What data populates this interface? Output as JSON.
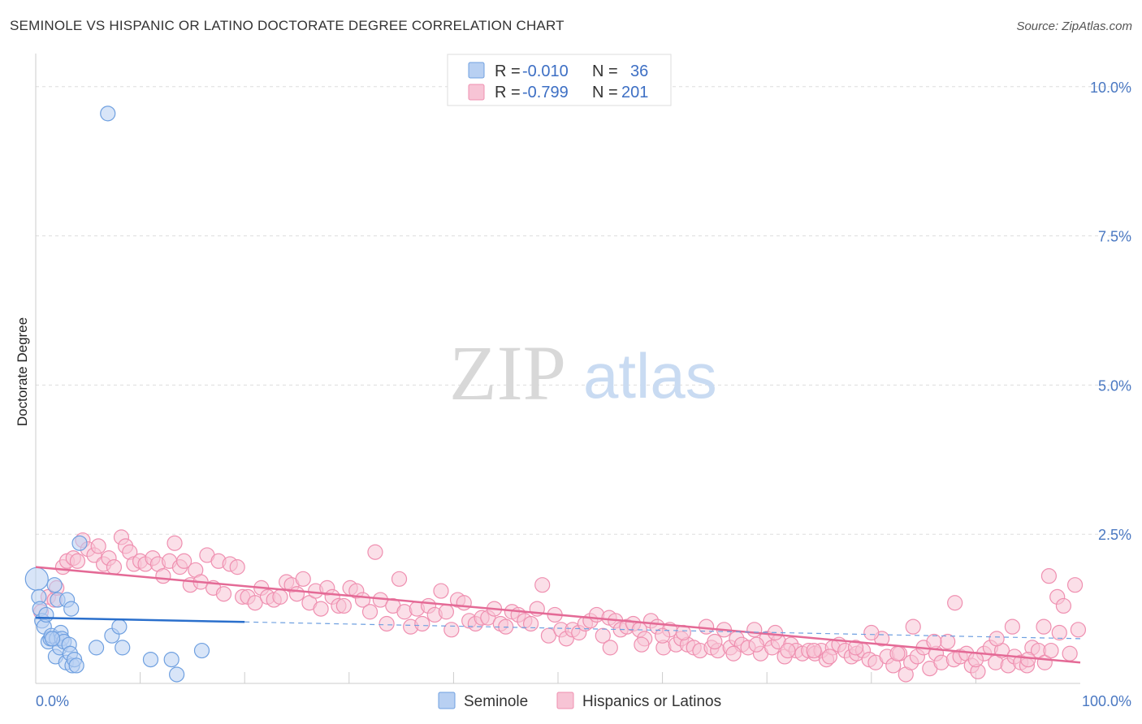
{
  "header": {
    "title": "SEMINOLE VS HISPANIC OR LATINO DOCTORATE DEGREE CORRELATION CHART",
    "source": "Source: ZipAtlas.com"
  },
  "watermark": {
    "zip": "ZIP",
    "atlas": "atlas"
  },
  "legend": {
    "rows": [
      {
        "r_label": "R =",
        "r_value": "-0.010",
        "n_label": "N =",
        "n_value": "36"
      },
      {
        "r_label": "R =",
        "r_value": "-0.799",
        "n_label": "N =",
        "n_value": "201"
      }
    ]
  },
  "bottom_legend": {
    "items": [
      "Seminole",
      "Hispanics or Latinos"
    ]
  },
  "colors": {
    "seminole": "#6fa0e0",
    "seminole_fill": "#b8d0f2",
    "seminole_line": "#2a6fcc",
    "hispanic": "#ef8fb0",
    "hispanic_fill": "#f7c4d5",
    "hispanic_line": "#e46a96",
    "grid": "#dddddd",
    "axis_text": "#4a78c2"
  },
  "chart_data": {
    "type": "scatter",
    "ylabel": "Doctorate Degree",
    "xlim": [
      0,
      100
    ],
    "ylim": [
      0,
      10.5
    ],
    "y_ticks": [
      {
        "value": 2.5,
        "label": "2.5%"
      },
      {
        "value": 5.0,
        "label": "5.0%"
      },
      {
        "value": 7.5,
        "label": "7.5%"
      },
      {
        "value": 10.0,
        "label": "10.0%"
      }
    ],
    "x_ticks": [
      {
        "value": 0,
        "label": "0.0%"
      },
      {
        "value": 100,
        "label": "100.0%"
      }
    ],
    "x_minor_ticks": [
      10,
      20,
      30,
      40,
      50,
      60,
      70,
      80,
      90
    ],
    "grid": "horizontal-dashed",
    "series": [
      {
        "name": "Seminole",
        "trend": {
          "x0": 0,
          "y0": 1.1,
          "x1": 100,
          "y1": 0.75,
          "solid_until": 20
        },
        "points": [
          [
            0.1,
            1.75
          ],
          [
            0.3,
            1.45
          ],
          [
            0.4,
            1.25
          ],
          [
            0.6,
            1.05
          ],
          [
            0.8,
            0.95
          ],
          [
            1.0,
            1.15
          ],
          [
            1.2,
            0.7
          ],
          [
            1.4,
            0.75
          ],
          [
            1.5,
            0.8
          ],
          [
            1.8,
            1.65
          ],
          [
            1.9,
            0.45
          ],
          [
            2.0,
            0.75
          ],
          [
            2.1,
            1.4
          ],
          [
            2.3,
            0.6
          ],
          [
            2.4,
            0.85
          ],
          [
            2.5,
            0.75
          ],
          [
            2.7,
            0.7
          ],
          [
            2.9,
            0.35
          ],
          [
            3.0,
            1.4
          ],
          [
            3.2,
            0.65
          ],
          [
            3.3,
            0.5
          ],
          [
            3.4,
            1.25
          ],
          [
            3.5,
            0.3
          ],
          [
            3.7,
            0.4
          ],
          [
            3.9,
            0.3
          ],
          [
            4.2,
            2.35
          ],
          [
            5.8,
            0.6
          ],
          [
            6.9,
            9.55
          ],
          [
            7.3,
            0.8
          ],
          [
            8.0,
            0.95
          ],
          [
            8.3,
            0.6
          ],
          [
            11.0,
            0.4
          ],
          [
            13.0,
            0.4
          ],
          [
            13.5,
            0.15
          ],
          [
            15.9,
            0.55
          ],
          [
            1.6,
            0.75
          ]
        ]
      },
      {
        "name": "Hispanics or Latinos",
        "trend": {
          "x0": 0,
          "y0": 1.95,
          "x1": 100,
          "y1": 0.35
        },
        "points": [
          [
            0.5,
            1.2
          ],
          [
            1.2,
            1.45
          ],
          [
            1.8,
            1.4
          ],
          [
            2.0,
            1.6
          ],
          [
            2.6,
            1.95
          ],
          [
            3.0,
            2.05
          ],
          [
            3.6,
            2.1
          ],
          [
            4.0,
            2.05
          ],
          [
            4.5,
            2.4
          ],
          [
            5.0,
            2.25
          ],
          [
            5.6,
            2.15
          ],
          [
            6.0,
            2.3
          ],
          [
            6.5,
            2.0
          ],
          [
            7.0,
            2.1
          ],
          [
            7.5,
            1.95
          ],
          [
            8.2,
            2.45
          ],
          [
            8.6,
            2.3
          ],
          [
            9.0,
            2.2
          ],
          [
            9.4,
            2.0
          ],
          [
            10.0,
            2.05
          ],
          [
            10.5,
            2.0
          ],
          [
            11.2,
            2.1
          ],
          [
            11.7,
            2.0
          ],
          [
            12.2,
            1.8
          ],
          [
            12.8,
            2.05
          ],
          [
            13.3,
            2.35
          ],
          [
            13.8,
            1.95
          ],
          [
            14.2,
            2.05
          ],
          [
            14.8,
            1.65
          ],
          [
            15.3,
            1.9
          ],
          [
            15.8,
            1.7
          ],
          [
            16.4,
            2.15
          ],
          [
            17.0,
            1.6
          ],
          [
            17.5,
            2.05
          ],
          [
            18.0,
            1.5
          ],
          [
            18.6,
            2.0
          ],
          [
            19.3,
            1.95
          ],
          [
            19.8,
            1.45
          ],
          [
            20.3,
            1.45
          ],
          [
            21.0,
            1.35
          ],
          [
            21.6,
            1.6
          ],
          [
            22.2,
            1.45
          ],
          [
            22.8,
            1.4
          ],
          [
            23.4,
            1.45
          ],
          [
            24.0,
            1.7
          ],
          [
            24.5,
            1.65
          ],
          [
            25.0,
            1.5
          ],
          [
            25.6,
            1.75
          ],
          [
            26.2,
            1.35
          ],
          [
            26.8,
            1.55
          ],
          [
            27.3,
            1.25
          ],
          [
            27.9,
            1.6
          ],
          [
            28.4,
            1.45
          ],
          [
            29.0,
            1.3
          ],
          [
            29.5,
            1.3
          ],
          [
            30.1,
            1.6
          ],
          [
            30.7,
            1.55
          ],
          [
            31.3,
            1.4
          ],
          [
            32.0,
            1.2
          ],
          [
            32.5,
            2.2
          ],
          [
            33.0,
            1.4
          ],
          [
            33.6,
            1.0
          ],
          [
            34.2,
            1.3
          ],
          [
            34.8,
            1.75
          ],
          [
            35.3,
            1.2
          ],
          [
            35.9,
            0.95
          ],
          [
            36.5,
            1.25
          ],
          [
            37.0,
            1.0
          ],
          [
            37.6,
            1.3
          ],
          [
            38.2,
            1.15
          ],
          [
            38.8,
            1.55
          ],
          [
            39.3,
            1.2
          ],
          [
            39.8,
            0.9
          ],
          [
            40.4,
            1.4
          ],
          [
            41.0,
            1.35
          ],
          [
            41.5,
            1.05
          ],
          [
            42.1,
            1.0
          ],
          [
            42.7,
            1.1
          ],
          [
            43.3,
            1.1
          ],
          [
            43.9,
            1.25
          ],
          [
            44.5,
            1.0
          ],
          [
            45.0,
            0.95
          ],
          [
            45.6,
            1.2
          ],
          [
            46.2,
            1.15
          ],
          [
            46.8,
            1.05
          ],
          [
            47.4,
            1.0
          ],
          [
            48.0,
            1.25
          ],
          [
            48.5,
            1.65
          ],
          [
            49.1,
            0.8
          ],
          [
            49.7,
            1.15
          ],
          [
            50.3,
            0.9
          ],
          [
            50.8,
            0.75
          ],
          [
            51.4,
            0.9
          ],
          [
            52.0,
            0.85
          ],
          [
            52.6,
            1.0
          ],
          [
            53.1,
            1.05
          ],
          [
            53.7,
            1.15
          ],
          [
            54.3,
            0.8
          ],
          [
            54.9,
            1.1
          ],
          [
            55.5,
            1.05
          ],
          [
            56.0,
            0.9
          ],
          [
            56.6,
            0.95
          ],
          [
            57.2,
            1.0
          ],
          [
            57.8,
            0.9
          ],
          [
            58.3,
            0.75
          ],
          [
            58.9,
            1.05
          ],
          [
            59.5,
            0.95
          ],
          [
            60.1,
            0.6
          ],
          [
            60.7,
            0.9
          ],
          [
            61.3,
            0.65
          ],
          [
            61.8,
            0.75
          ],
          [
            62.4,
            0.65
          ],
          [
            63.0,
            0.6
          ],
          [
            63.6,
            0.55
          ],
          [
            64.2,
            0.95
          ],
          [
            64.7,
            0.6
          ],
          [
            65.3,
            0.55
          ],
          [
            65.9,
            0.9
          ],
          [
            66.5,
            0.6
          ],
          [
            67.1,
            0.75
          ],
          [
            67.6,
            0.65
          ],
          [
            68.2,
            0.6
          ],
          [
            68.8,
            0.9
          ],
          [
            69.4,
            0.5
          ],
          [
            70.0,
            0.75
          ],
          [
            70.5,
            0.6
          ],
          [
            71.1,
            0.7
          ],
          [
            71.7,
            0.45
          ],
          [
            72.3,
            0.65
          ],
          [
            72.8,
            0.55
          ],
          [
            73.4,
            0.5
          ],
          [
            74.0,
            0.55
          ],
          [
            74.6,
            0.5
          ],
          [
            75.2,
            0.55
          ],
          [
            75.7,
            0.4
          ],
          [
            76.3,
            0.6
          ],
          [
            76.9,
            0.65
          ],
          [
            77.5,
            0.55
          ],
          [
            78.1,
            0.45
          ],
          [
            78.6,
            0.5
          ],
          [
            79.2,
            0.55
          ],
          [
            79.8,
            0.4
          ],
          [
            80.4,
            0.35
          ],
          [
            81.0,
            0.75
          ],
          [
            81.5,
            0.45
          ],
          [
            82.1,
            0.3
          ],
          [
            82.7,
            0.5
          ],
          [
            83.3,
            0.15
          ],
          [
            83.8,
            0.35
          ],
          [
            84.4,
            0.45
          ],
          [
            85.0,
            0.6
          ],
          [
            85.6,
            0.25
          ],
          [
            86.2,
            0.5
          ],
          [
            86.7,
            0.35
          ],
          [
            87.3,
            0.7
          ],
          [
            87.9,
            0.4
          ],
          [
            88.5,
            0.45
          ],
          [
            89.1,
            0.5
          ],
          [
            89.6,
            0.3
          ],
          [
            90.2,
            0.2
          ],
          [
            90.8,
            0.5
          ],
          [
            91.4,
            0.6
          ],
          [
            91.9,
            0.35
          ],
          [
            92.5,
            0.55
          ],
          [
            93.1,
            0.3
          ],
          [
            93.7,
            0.45
          ],
          [
            94.3,
            0.35
          ],
          [
            94.9,
            0.3
          ],
          [
            95.4,
            0.6
          ],
          [
            96.0,
            0.55
          ],
          [
            96.6,
            0.35
          ],
          [
            97.2,
            0.55
          ],
          [
            97.8,
            1.45
          ],
          [
            98.4,
            1.3
          ],
          [
            99.0,
            0.5
          ],
          [
            99.5,
            1.65
          ],
          [
            62.0,
            0.85
          ],
          [
            65.0,
            0.7
          ],
          [
            69.0,
            0.65
          ],
          [
            72.0,
            0.55
          ],
          [
            76.0,
            0.45
          ],
          [
            80.0,
            0.85
          ],
          [
            84.0,
            0.95
          ],
          [
            88.0,
            1.35
          ],
          [
            92.0,
            0.75
          ],
          [
            96.5,
            0.95
          ],
          [
            99.8,
            0.9
          ],
          [
            74.5,
            0.55
          ],
          [
            78.5,
            0.6
          ],
          [
            82.5,
            0.5
          ],
          [
            86.0,
            0.7
          ],
          [
            90.0,
            0.4
          ],
          [
            93.5,
            0.95
          ],
          [
            95.0,
            0.4
          ],
          [
            97.0,
            1.8
          ],
          [
            98.0,
            0.85
          ],
          [
            55.0,
            0.6
          ],
          [
            58.0,
            0.65
          ],
          [
            60.0,
            0.8
          ],
          [
            66.8,
            0.5
          ],
          [
            70.8,
            0.85
          ]
        ]
      }
    ]
  }
}
